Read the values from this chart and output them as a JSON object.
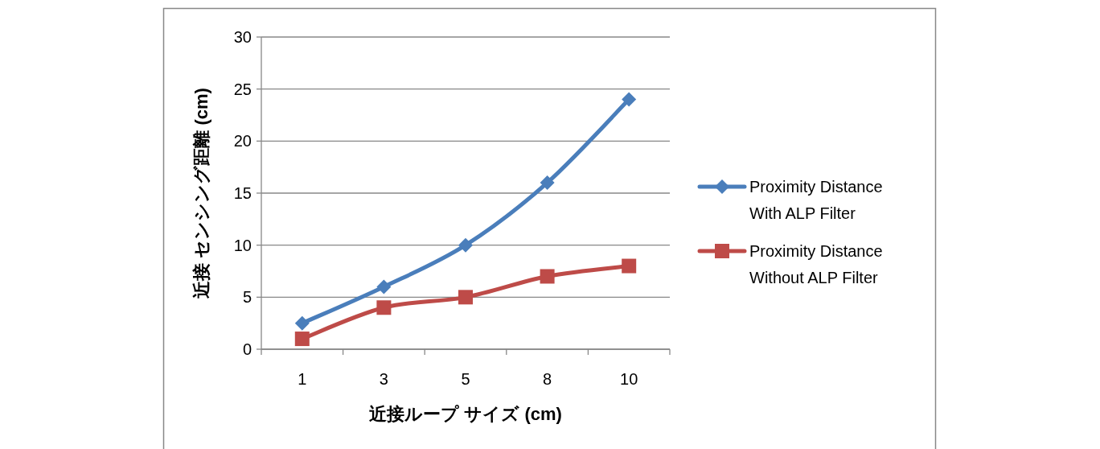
{
  "chart_data": {
    "type": "line",
    "xlabel": "近接ループ サイズ (cm)",
    "ylabel": "近接 センシング距離 (cm)",
    "categories": [
      "1",
      "3",
      "5",
      "8",
      "10"
    ],
    "series": [
      {
        "name": "Proximity Distance With ALP Filter",
        "color": "#4a7ebb",
        "marker": "diamond",
        "values": [
          2.5,
          6,
          10,
          16,
          24
        ]
      },
      {
        "name": "Proximity Distance Without ALP Filter",
        "color": "#be4b48",
        "marker": "square",
        "values": [
          1,
          4,
          5,
          7,
          8
        ]
      }
    ],
    "ylim": [
      0,
      30
    ],
    "yticks": [
      0,
      5,
      10,
      15,
      20,
      25,
      30
    ],
    "grid": "y",
    "legend": "right",
    "line_style": "solid"
  }
}
